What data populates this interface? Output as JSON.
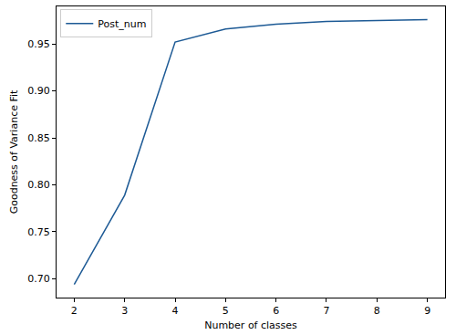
{
  "chart_data": {
    "type": "line",
    "x_label": "Number of classes",
    "y_label": "Goodness of Variance Fit",
    "x": [
      2,
      3,
      4,
      5,
      6,
      7,
      8,
      9
    ],
    "series": [
      {
        "name": "Post_num",
        "color": "#1d5a95",
        "values": [
          0.694,
          0.789,
          0.952,
          0.966,
          0.971,
          0.974,
          0.975,
          0.976
        ]
      }
    ],
    "xlim": [
      1.65,
      9.35
    ],
    "xticks": [
      2,
      3,
      4,
      5,
      6,
      7,
      8,
      9
    ],
    "ylim": [
      0.68,
      0.99
    ],
    "yticks": [
      {
        "value": 0.7,
        "label": "0.70"
      },
      0.75,
      {
        "value": 0.8,
        "label": "0.80"
      },
      0.85,
      {
        "value": 0.9,
        "label": "0.90"
      },
      0.95
    ],
    "grid": false,
    "legend": "upper left"
  }
}
